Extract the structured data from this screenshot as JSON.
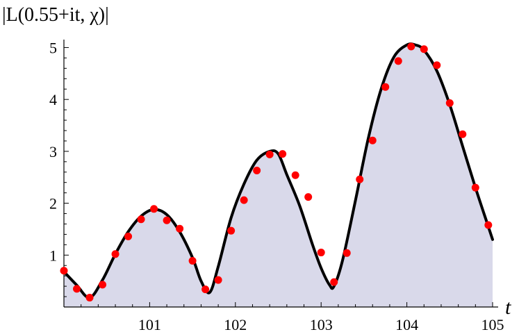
{
  "chart_data": {
    "type": "line",
    "title": "|L(0.55+it, χ)|",
    "xlabel": "t",
    "ylabel": "",
    "xlim": [
      100.0,
      105.0
    ],
    "ylim": [
      0,
      5.1
    ],
    "xticks": [
      101,
      102,
      103,
      104,
      105
    ],
    "yticks": [
      1,
      2,
      3,
      4,
      5
    ],
    "grid": false,
    "colors": {
      "curve": "#000000",
      "fill": "#d9d9ea",
      "points": "#ff0000",
      "axis": "#000000"
    },
    "series": [
      {
        "style": "solid-line-filled",
        "x": [
          100.0,
          100.15,
          100.3,
          100.45,
          100.6,
          100.75,
          100.9,
          101.05,
          101.2,
          101.35,
          101.5,
          101.6,
          101.7,
          101.8,
          101.95,
          102.1,
          102.25,
          102.4,
          102.5,
          102.6,
          102.75,
          102.9,
          103.0,
          103.1,
          103.15,
          103.25,
          103.4,
          103.55,
          103.7,
          103.85,
          104.0,
          104.1,
          104.2,
          104.35,
          104.5,
          104.65,
          104.8,
          104.95,
          105.0
        ],
        "y": [
          0.68,
          0.42,
          0.18,
          0.52,
          1.02,
          1.45,
          1.75,
          1.88,
          1.78,
          1.45,
          0.95,
          0.5,
          0.28,
          0.78,
          1.72,
          2.37,
          2.83,
          3.0,
          2.95,
          2.55,
          1.95,
          1.2,
          0.75,
          0.42,
          0.4,
          0.9,
          2.05,
          3.25,
          4.2,
          4.82,
          5.05,
          5.05,
          4.95,
          4.55,
          3.9,
          3.1,
          2.3,
          1.55,
          1.3
        ]
      },
      {
        "style": "points",
        "x": [
          100.0,
          100.15,
          100.3,
          100.45,
          100.6,
          100.75,
          100.9,
          101.05,
          101.2,
          101.35,
          101.5,
          101.65,
          101.8,
          101.95,
          102.1,
          102.25,
          102.4,
          102.55,
          102.7,
          102.85,
          103.0,
          103.15,
          103.3,
          103.45,
          103.6,
          103.75,
          103.9,
          104.05,
          104.2,
          104.35,
          104.5,
          104.65,
          104.8,
          104.95
        ],
        "y": [
          0.7,
          0.35,
          0.18,
          0.43,
          1.02,
          1.36,
          1.69,
          1.89,
          1.67,
          1.51,
          0.89,
          0.34,
          0.52,
          1.47,
          2.06,
          2.63,
          2.94,
          2.95,
          2.54,
          2.12,
          1.05,
          0.48,
          1.04,
          2.46,
          3.21,
          4.24,
          4.74,
          5.02,
          4.97,
          4.66,
          3.93,
          3.33,
          2.3,
          1.58
        ]
      }
    ]
  }
}
